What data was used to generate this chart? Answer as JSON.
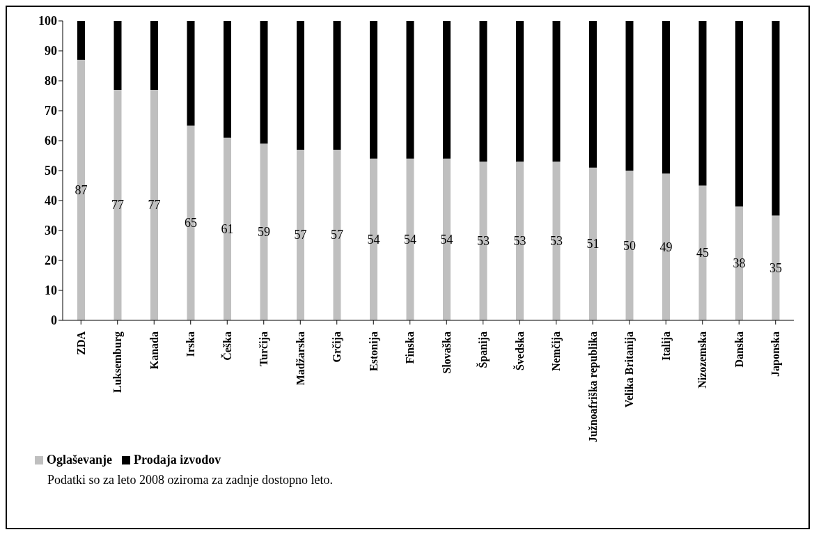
{
  "chart_data": {
    "type": "bar",
    "stacked": true,
    "categories": [
      "ZDA",
      "Luksemburg",
      "Kanada",
      "Irska",
      "Češka",
      "Turčija",
      "Madžarska",
      "Grčija",
      "Estonija",
      "Finska",
      "Slovaška",
      "Španija",
      "Švedska",
      "Nemčija",
      "Južnoafriška republika",
      "Velika Britanija",
      "Italija",
      "Nizozemska",
      "Danska",
      "Japonska"
    ],
    "series": [
      {
        "name": "Oglaševanje",
        "color": "#bfbfbf",
        "values": [
          87,
          77,
          77,
          65,
          61,
          59,
          57,
          57,
          54,
          54,
          54,
          53,
          53,
          53,
          51,
          50,
          49,
          45,
          38,
          35
        ],
        "value_labels": [
          "87",
          "77",
          "77",
          "65",
          "61",
          "59",
          "57",
          "57",
          "54",
          "54",
          "54",
          "53",
          "53",
          "53",
          "51",
          "50",
          "49",
          "45",
          "38",
          "35"
        ]
      },
      {
        "name": "Prodaja izvodov",
        "color": "#000000",
        "values": [
          13,
          23,
          23,
          35,
          39,
          41,
          43,
          43,
          46,
          46,
          46,
          47,
          47,
          47,
          49,
          50,
          51,
          55,
          62,
          65
        ]
      }
    ],
    "ylim": [
      0,
      100
    ],
    "yticks": [
      0,
      10,
      20,
      30,
      40,
      50,
      60,
      70,
      80,
      90,
      100
    ],
    "grid": false,
    "legend": "bottom left",
    "annotations": [
      "Podatki so za leto 2008 oziroma za zadnje dostopno leto."
    ]
  }
}
